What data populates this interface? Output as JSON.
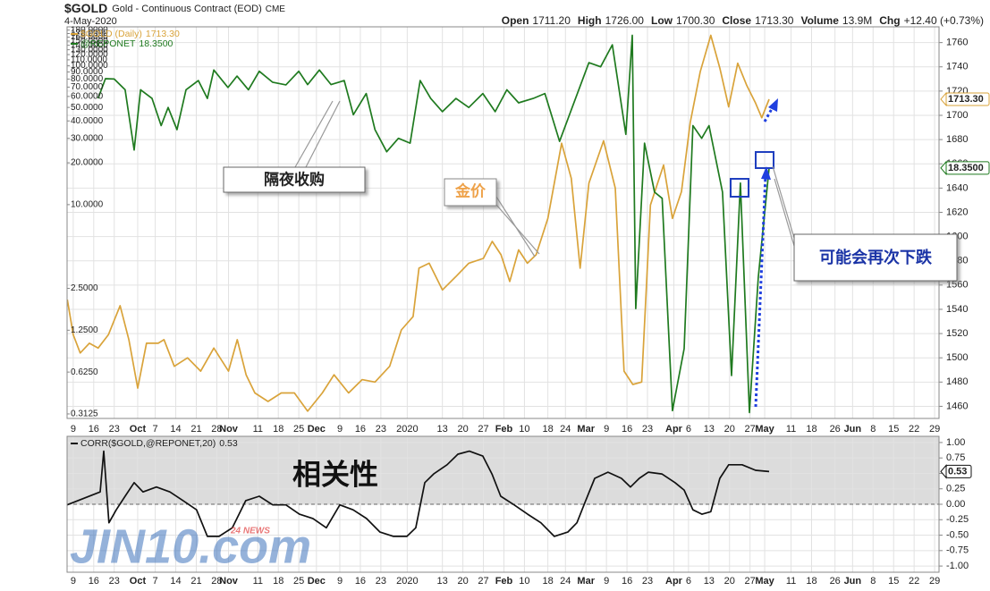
{
  "header": {
    "symbol": "$GOLD",
    "description": "Gold - Continuous Contract (EOD)",
    "exchange": "CME",
    "date": "4-May-2020",
    "quote": [
      {
        "label": "Open",
        "value": "1711.20"
      },
      {
        "label": "High",
        "value": "1726.00"
      },
      {
        "label": "Low",
        "value": "1700.30"
      },
      {
        "label": "Close",
        "value": "1713.30"
      },
      {
        "label": "Volume",
        "value": "13.9M"
      },
      {
        "label": "Chg",
        "value": "+12.40 (+0.73%)"
      }
    ]
  },
  "watermark": {
    "brand": "JIN10.com",
    "badge": "24 NEWS"
  },
  "chart_data": [
    {
      "type": "line",
      "grid": true,
      "yaxis_side": "right",
      "y2axis_side": "left",
      "y2_log": true,
      "annotations": [
        "隔夜收购",
        "金价",
        "可能会再次下跌"
      ],
      "xlim": [
        -2.1,
        295.5
      ],
      "xticks": [
        {
          "value": 0,
          "label": "9"
        },
        {
          "value": 7,
          "label": "16"
        },
        {
          "value": 14,
          "label": "23"
        },
        {
          "value": 22,
          "label": "Oct"
        },
        {
          "value": 28,
          "label": "7"
        },
        {
          "value": 35,
          "label": "14"
        },
        {
          "value": 42,
          "label": "21"
        },
        {
          "value": 49,
          "label": "28"
        },
        {
          "value": 53,
          "label": "Nov"
        },
        {
          "value": 63,
          "label": "11"
        },
        {
          "value": 70,
          "label": "18"
        },
        {
          "value": 77,
          "label": "25"
        },
        {
          "value": 83,
          "label": "Dec"
        },
        {
          "value": 91,
          "label": "9"
        },
        {
          "value": 98,
          "label": "16"
        },
        {
          "value": 105,
          "label": "23"
        },
        {
          "value": 114,
          "label": "2020"
        },
        {
          "value": 126,
          "label": "13"
        },
        {
          "value": 133,
          "label": "20"
        },
        {
          "value": 140,
          "label": "27"
        },
        {
          "value": 147,
          "label": "Feb"
        },
        {
          "value": 154,
          "label": "10"
        },
        {
          "value": 162,
          "label": "18"
        },
        {
          "value": 168,
          "label": "24"
        },
        {
          "value": 175,
          "label": "Mar"
        },
        {
          "value": 182,
          "label": "9"
        },
        {
          "value": 189,
          "label": "16"
        },
        {
          "value": 196,
          "label": "23"
        },
        {
          "value": 205,
          "label": "Apr"
        },
        {
          "value": 210,
          "label": "6"
        },
        {
          "value": 217,
          "label": "13"
        },
        {
          "value": 224,
          "label": "20"
        },
        {
          "value": 231,
          "label": "27"
        },
        {
          "value": 236,
          "label": "May"
        },
        {
          "value": 245,
          "label": "11"
        },
        {
          "value": 252,
          "label": "18"
        },
        {
          "value": 260,
          "label": "26"
        },
        {
          "value": 266,
          "label": "Jun"
        },
        {
          "value": 273,
          "label": "8"
        },
        {
          "value": 280,
          "label": "15"
        },
        {
          "value": 287,
          "label": "22"
        },
        {
          "value": 294,
          "label": "29"
        }
      ],
      "ylim": [
        1450,
        1773
      ],
      "yticks": [
        1460,
        1480,
        1500,
        1520,
        1540,
        1560,
        1580,
        1600,
        1620,
        1640,
        1660,
        1680,
        1700,
        1720,
        1740,
        1760
      ],
      "y2lim": [
        0.29,
        190
      ],
      "y2ticks": [
        0.3125,
        {
          "value": 0.625,
          "label": "0.6250"
        },
        {
          "value": 1.25,
          "label": "1.2500"
        },
        {
          "value": 2.5,
          "label": "2.5000"
        },
        {
          "value": 10,
          "label": "10.0000"
        },
        {
          "value": 20,
          "label": "20.0000"
        },
        {
          "value": 30,
          "label": "30.0000"
        },
        {
          "value": 40,
          "label": "40.0000"
        },
        {
          "value": 50,
          "label": "50.0000"
        },
        {
          "value": 60,
          "label": "60.0000"
        },
        {
          "value": 70,
          "label": "70.0000"
        },
        {
          "value": 80,
          "label": "80.0000"
        },
        {
          "value": 90,
          "label": "90.0000"
        },
        {
          "value": 100,
          "label": "100.0000"
        },
        {
          "value": 110,
          "label": "110.0000"
        },
        {
          "value": 120,
          "label": "120.0000"
        },
        {
          "value": 130,
          "label": "130.0000"
        },
        {
          "value": 140,
          "label": "140.0000"
        },
        {
          "value": 150,
          "label": "150.0000"
        },
        {
          "value": 160,
          "label": "160.0000"
        },
        {
          "value": 170,
          "label": "170.0000"
        },
        {
          "value": 180,
          "label": "180.0000"
        }
      ],
      "series": [
        {
          "name": "$GOLD (Daily)",
          "color": "#d9a33a",
          "last_label": "1713.30",
          "x": [
            -2,
            0,
            2.4,
            5.5,
            8.5,
            12,
            16,
            19,
            22,
            25,
            29,
            31,
            34.5,
            39,
            43.5,
            48,
            53,
            56,
            59,
            62,
            66.5,
            71,
            75.5,
            80,
            85,
            89,
            94,
            98.6,
            103,
            108,
            112,
            116,
            118,
            121.5,
            126,
            130.6,
            135,
            140,
            143,
            146,
            149,
            152,
            155,
            158,
            162,
            166.7,
            170,
            173,
            176,
            181,
            185,
            188,
            191,
            194,
            197,
            201.5,
            204.5,
            207.6,
            210.6,
            214,
            217.6,
            220.7,
            223.7,
            226.8,
            229.8,
            232.9,
            235,
            237.5
          ],
          "values": [
            1548,
            1519,
            1504,
            1512,
            1508,
            1519,
            1543,
            1515,
            1475,
            1512,
            1512,
            1515,
            1493,
            1500,
            1489,
            1508,
            1489,
            1515,
            1486,
            1471,
            1464,
            1471,
            1471,
            1456,
            1471,
            1486,
            1471,
            1482,
            1480,
            1493,
            1523,
            1534,
            1574,
            1578,
            1556,
            1567,
            1578,
            1582,
            1596,
            1585,
            1563,
            1589,
            1578,
            1585,
            1615,
            1677,
            1648,
            1574,
            1644,
            1679,
            1640,
            1489,
            1478,
            1480,
            1626,
            1659,
            1615,
            1637,
            1694,
            1736,
            1766,
            1739,
            1707,
            1743,
            1725,
            1710,
            1698,
            1713.3
          ]
        },
        {
          "name": "@REPONET",
          "color": "#1f7a1f",
          "axis": "y2",
          "last_label": "18.3500",
          "x": [
            8.5,
            11,
            14,
            17.7,
            20.8,
            23,
            26.9,
            30,
            32.4,
            35.4,
            38.5,
            42.7,
            45.8,
            48,
            52.8,
            55.9,
            59.8,
            63.5,
            68,
            72.6,
            77,
            80,
            84,
            88,
            92.5,
            95.6,
            100,
            103,
            107,
            111,
            115,
            118.4,
            122,
            126,
            130.6,
            135,
            139.8,
            144,
            148,
            152,
            157,
            161,
            166,
            170.3,
            176,
            180,
            184,
            188.6,
            190.8,
            192,
            195,
            198.4,
            201,
            204.5,
            208.5,
            211.5,
            214.5,
            217,
            221.6,
            224.7,
            227.7,
            230.8,
            233.8,
            237.5
          ],
          "values": [
            58,
            80.5,
            80,
            67,
            24.7,
            67,
            58,
            37,
            50,
            34.6,
            67,
            78,
            58,
            93,
            69.5,
            84,
            67,
            91,
            76,
            72.7,
            91,
            73,
            93,
            73,
            78,
            44.3,
            63,
            34.6,
            24,
            30,
            27.7,
            78,
            58,
            46.6,
            58,
            50,
            63,
            46.6,
            67,
            54,
            58,
            63,
            28.5,
            50,
            105,
            98,
            141,
            32,
            165,
            1.79,
            27.7,
            12.3,
            11.1,
            0.33,
            0.92,
            37,
            30,
            37,
            12.3,
            0.59,
            14.3,
            0.32,
            3.0,
            18.35
          ]
        }
      ]
    },
    {
      "type": "line",
      "grid": true,
      "yaxis_side": "right",
      "annotations": [
        "相关性"
      ],
      "ylim": [
        -1.1,
        1.1
      ],
      "yticks": [
        {
          "value": 1,
          "label": "1.00"
        },
        {
          "value": 0.75,
          "label": "0.75"
        },
        {
          "value": 0.5,
          "label": "0.50"
        },
        {
          "value": 0.25,
          "label": "0.25"
        },
        {
          "value": 0,
          "label": "0.00"
        },
        {
          "value": -0.25,
          "label": "-0.25"
        },
        {
          "value": -0.5,
          "label": "-0.50"
        },
        {
          "value": -0.75,
          "label": "-0.75"
        },
        {
          "value": -1,
          "label": "-1.00"
        }
      ],
      "series": [
        {
          "name": "CORR($GOLD,@REPONET,20)",
          "color": "#111111",
          "x": [
            -2.1,
            9.2,
            10.4,
            12.2,
            14.7,
            17.7,
            20.8,
            23.8,
            28.4,
            33,
            37.5,
            42.1,
            45.8,
            49.8,
            54.3,
            58.9,
            63.5,
            68.1,
            72.6,
            77.2,
            81.8,
            86.4,
            91,
            95.5,
            100.1,
            104.7,
            109.3,
            113.9,
            116.9,
            120,
            123,
            127.6,
            131.3,
            135.2,
            139.8,
            142.9,
            145.9,
            150.5,
            155.1,
            159.6,
            164.2,
            168.8,
            171.9,
            174.9,
            178,
            182.5,
            187.1,
            190.2,
            193.2,
            196.3,
            200.9,
            205.4,
            208.5,
            211.5,
            214.6,
            217.6,
            220.7,
            223.7,
            228.3,
            232.9,
            237.5
          ],
          "values": [
            -0.01,
            0.2,
            0.86,
            -0.3,
            -0.09,
            0.13,
            0.35,
            0.2,
            0.28,
            0.2,
            0.06,
            -0.09,
            -0.52,
            -0.52,
            -0.38,
            0.06,
            0.13,
            -0.01,
            -0.01,
            -0.16,
            -0.23,
            -0.38,
            -0.01,
            -0.09,
            -0.23,
            -0.45,
            -0.52,
            -0.52,
            -0.38,
            0.35,
            0.49,
            0.64,
            0.81,
            0.86,
            0.78,
            0.49,
            0.13,
            -0.01,
            -0.16,
            -0.3,
            -0.52,
            -0.45,
            -0.3,
            0.06,
            0.42,
            0.52,
            0.42,
            0.28,
            0.42,
            0.52,
            0.49,
            0.35,
            0.23,
            -0.09,
            -0.16,
            -0.12,
            0.42,
            0.64,
            0.64,
            0.55,
            0.53
          ]
        }
      ]
    }
  ]
}
